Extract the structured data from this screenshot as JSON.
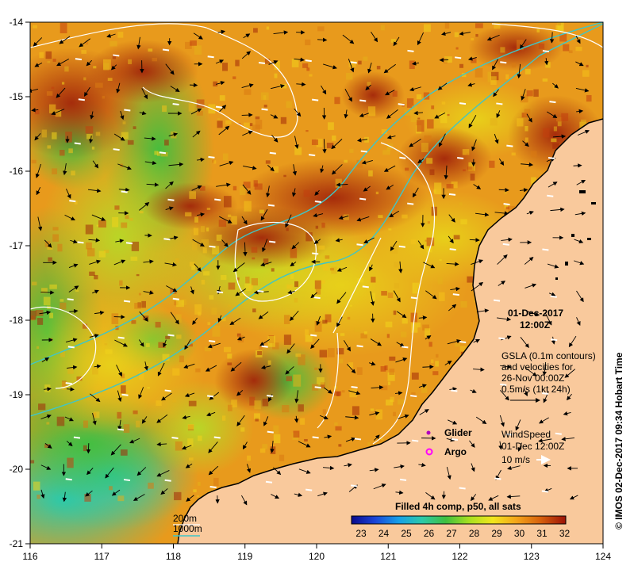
{
  "map": {
    "date": "01-Dec-2017",
    "time": "12:00Z",
    "gsla_lines": [
      "GSLA (0.1m contours)",
      "and velocities for",
      "26-Nov 00:00Z",
      "0.5m/s (1kt 24h)"
    ],
    "glider_label": "Glider",
    "argo_label": "Argo",
    "wind_lines": [
      "WindSpeed",
      "01-Dec 12:00Z"
    ],
    "wind_scale_label": "10 m/s",
    "depth_200": "200m",
    "depth_1000": "1000m",
    "colorbar_title": "Filled 4h comp, p50, all sats",
    "colorbar_ticks": [
      "23",
      "24",
      "25",
      "26",
      "27",
      "28",
      "29",
      "30",
      "31",
      "32"
    ],
    "credit": "©  IMOS 02-Dec-2017 09:34 Hobart Time",
    "lon_ticks": [
      "116",
      "117",
      "118",
      "119",
      "120",
      "121",
      "122",
      "123",
      "124"
    ],
    "lat_ticks": [
      "-14",
      "-15",
      "-16",
      "-17",
      "-18",
      "-19",
      "-20",
      "-21"
    ],
    "colors": {
      "land": "#f9c99c",
      "contour_gsla": "#ffffff",
      "isobath": "#3fc6c6",
      "glider": "#b000c0",
      "argo": "#ff00ff"
    }
  }
}
